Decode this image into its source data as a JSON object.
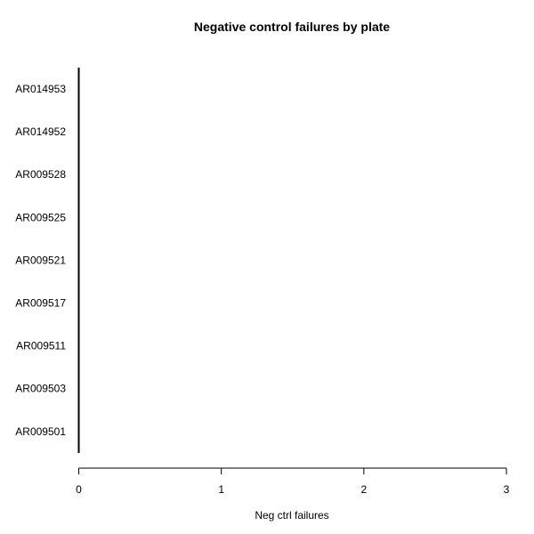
{
  "chart_data": {
    "type": "bar",
    "orientation": "horizontal",
    "title": "Negative control failures by plate",
    "xlabel": "Neg ctrl failures",
    "ylabel": "",
    "categories": [
      "AR014953",
      "AR014952",
      "AR009528",
      "AR009525",
      "AR009521",
      "AR009517",
      "AR009511",
      "AR009503",
      "AR009501"
    ],
    "values": [
      0,
      0,
      0,
      0,
      0,
      0,
      0,
      0,
      0
    ],
    "xlim": [
      0,
      3
    ],
    "xticks": [
      0,
      1,
      2,
      3
    ],
    "grid": false,
    "legend": "none"
  }
}
